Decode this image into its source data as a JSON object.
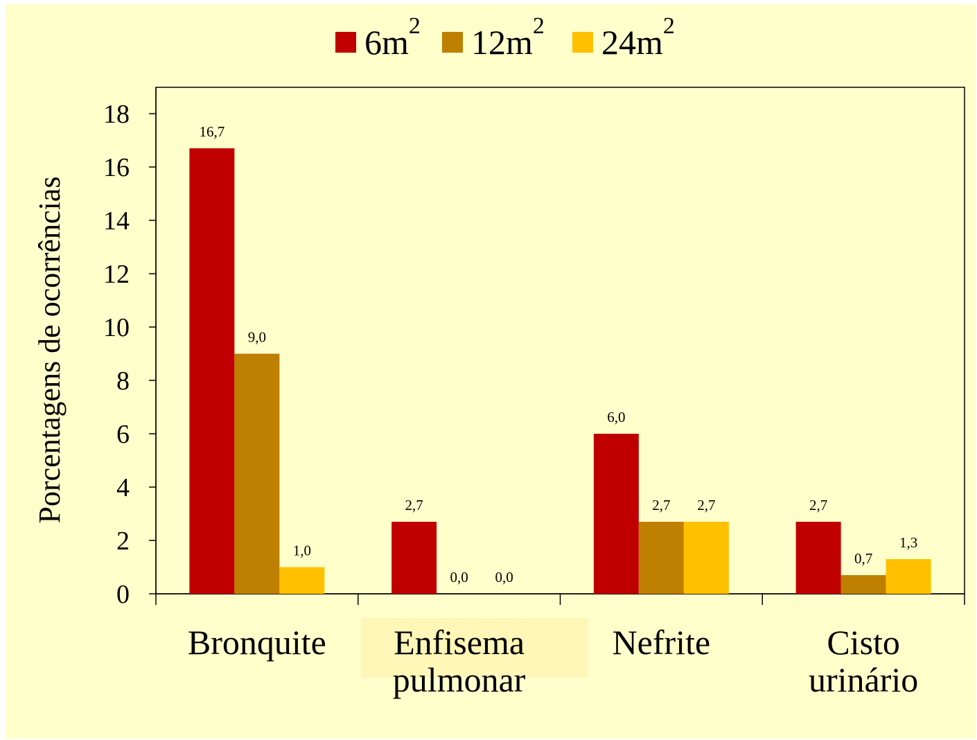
{
  "chart_data": {
    "type": "bar",
    "categories": [
      [
        "Bronquite"
      ],
      [
        "Enfisema",
        "pulmonar"
      ],
      [
        "Nefrite"
      ],
      [
        "Cisto",
        "urinário"
      ]
    ],
    "series": [
      {
        "name": "6m",
        "name_sup": "2",
        "color": "#C00000",
        "values": [
          16.7,
          2.7,
          6.0,
          2.7
        ],
        "labels": [
          "16,7",
          "2,7",
          "6,0",
          "2,7"
        ]
      },
      {
        "name": "12m",
        "name_sup": "2",
        "color": "#BF7F00",
        "values": [
          9.0,
          0.0,
          2.7,
          0.7
        ],
        "labels": [
          "9,0",
          "0,0",
          "2,7",
          "0,7"
        ]
      },
      {
        "name": "24m",
        "name_sup": "2",
        "color": "#FFC000",
        "values": [
          1.0,
          0.0,
          2.7,
          1.3
        ],
        "labels": [
          "1,0",
          "0,0",
          "2,7",
          "1,3"
        ]
      }
    ],
    "ylabel": "Porcentagens de ocorrências",
    "ylim": [
      0,
      18
    ],
    "yticks": [
      "0",
      "2",
      "4",
      "6",
      "8",
      "10",
      "12",
      "14",
      "16",
      "18"
    ],
    "grid": false,
    "legend_position": "top"
  }
}
